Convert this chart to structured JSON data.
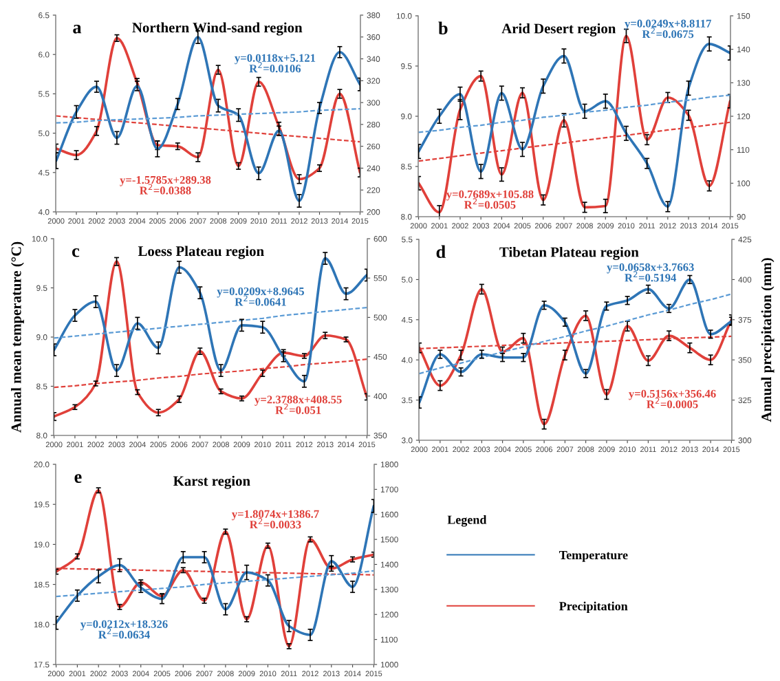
{
  "chart_data": [
    {
      "type": "line",
      "title": "Northern Wind-sand region",
      "annotations": [
        "a",
        "y=0.0118x+5.121\nR$^{2}$=0.0106",
        "y=-1.5785x+289.38\nR$^{2}$=0.0388"
      ],
      "categories": [
        "2000",
        "2001",
        "2002",
        "2003",
        "2004",
        "2005",
        "2006",
        "2007",
        "2008",
        "2009",
        "2010",
        "2011",
        "2012",
        "2013",
        "2014",
        "2015"
      ],
      "ylim": [
        4,
        6.5
      ],
      "yticks": [
        {
          "value": 4,
          "label": "4.0"
        },
        4.5,
        {
          "value": 5,
          "label": "5.0"
        },
        5.5,
        {
          "value": 6,
          "label": "6.0"
        },
        6.5
      ],
      "y2lim": [
        200,
        380
      ],
      "y2ticks": [
        200,
        220,
        240,
        260,
        280,
        300,
        320,
        340,
        360,
        380
      ],
      "series": [
        {
          "color": "#2e75b6",
          "values": [
            4.65,
            5.27,
            5.59,
            4.94,
            5.6,
            4.8,
            5.37,
            6.22,
            5.35,
            5.23,
            4.49,
            5.03,
            4.14,
            5.32,
            6.03,
            5.62
          ],
          "errors": [
            0.1,
            0.08,
            0.07,
            0.08,
            0.06,
            0.1,
            0.07,
            0.08,
            0.08,
            0.08,
            0.08,
            0.06,
            0.08,
            0.07,
            0.07,
            0.08
          ]
        },
        {
          "color": "#e0403a",
          "axis": "y2",
          "values": [
            258,
            252,
            274,
            359,
            318,
            261,
            260,
            250,
            330,
            242,
            319,
            278,
            230,
            240,
            308,
            236
          ],
          "errors": [
            4,
            4,
            4,
            3,
            4,
            4,
            3,
            4,
            4,
            3,
            4,
            4,
            4,
            3,
            4,
            4
          ]
        },
        {
          "type": "line",
          "line_style": "dashed",
          "color": "#5b9bd5",
          "values": [
            5.13,
            5.14,
            5.16,
            5.17,
            5.18,
            5.19,
            5.2,
            5.22,
            5.23,
            5.24,
            5.25,
            5.26,
            5.27,
            5.29,
            5.3,
            5.31
          ]
        },
        {
          "type": "line",
          "line_style": "dashed",
          "color": "#e0403a",
          "axis": "y2",
          "values": [
            287.8,
            286.2,
            284.6,
            283.1,
            281.5,
            279.9,
            278.3,
            276.8,
            275.2,
            273.6,
            272.0,
            270.4,
            268.9,
            267.3,
            265.7,
            264.1
          ]
        }
      ]
    },
    {
      "type": "line",
      "title": "Arid Desert region",
      "annotations": [
        "b",
        "y=0.0249x+8.8117\nR$^{2}$=0.0675",
        "y=0.7689x+105.88\nR$^{2}$=0.0505"
      ],
      "categories": [
        "2000",
        "2001",
        "2002",
        "2003",
        "2004",
        "2005",
        "2006",
        "2007",
        "2008",
        "2009",
        "2010",
        "2011",
        "2012",
        "2013",
        "2014",
        "2015"
      ],
      "ylim": [
        8,
        10
      ],
      "yticks": [
        {
          "value": 8,
          "label": "8.0"
        },
        8.5,
        {
          "value": 9,
          "label": "9.0"
        },
        9.5,
        {
          "value": 10,
          "label": "10.0"
        }
      ],
      "y2lim": [
        90,
        150
      ],
      "y2ticks": [
        90,
        100,
        110,
        120,
        130,
        140,
        150
      ],
      "series": [
        {
          "color": "#2e75b6",
          "values": [
            8.65,
            9.0,
            9.22,
            8.45,
            9.23,
            8.67,
            9.3,
            9.6,
            9.05,
            9.15,
            8.83,
            8.53,
            8.1,
            9.28,
            9.72,
            9.63
          ],
          "errors": [
            0.07,
            0.07,
            0.07,
            0.07,
            0.07,
            0.07,
            0.07,
            0.07,
            0.07,
            0.07,
            0.07,
            0.05,
            0.05,
            0.07,
            0.07,
            0.07
          ]
        },
        {
          "color": "#e0403a",
          "axis": "y2",
          "values": [
            100,
            91.3,
            122,
            132,
            102.6,
            127,
            95,
            118.8,
            92.8,
            93.2,
            144,
            113,
            125.6,
            120.3,
            99.2,
            124.5
          ],
          "errors": [
            2,
            2,
            3,
            1.5,
            2,
            1.5,
            1.5,
            2,
            1.5,
            2,
            2,
            1.5,
            1.5,
            1.5,
            1.5,
            2
          ]
        },
        {
          "type": "line",
          "line_style": "dashed",
          "color": "#5b9bd5",
          "values": [
            8.84,
            8.86,
            8.89,
            8.91,
            8.94,
            8.96,
            8.99,
            9.01,
            9.04,
            9.06,
            9.09,
            9.11,
            9.14,
            9.16,
            9.19,
            9.21
          ]
        },
        {
          "type": "line",
          "line_style": "dashed",
          "color": "#e0403a",
          "axis": "y2",
          "values": [
            106.6,
            107.4,
            108.2,
            109.0,
            109.7,
            110.5,
            111.3,
            112.0,
            112.8,
            113.6,
            114.3,
            115.1,
            115.9,
            116.6,
            117.4,
            118.2
          ]
        }
      ]
    },
    {
      "type": "line",
      "title": "Loess Plateau region",
      "ylabel": "Annual mean temperature (°C)",
      "annotations": [
        "c",
        "y=0.0209x+8.9645\nR$^{2}$=0.0641",
        "y=2.3788x+408.55\nR$^{2}$=0.051"
      ],
      "categories": [
        "2000",
        "2001",
        "2002",
        "2003",
        "2004",
        "2005",
        "2006",
        "2007",
        "2008",
        "2009",
        "2010",
        "2011",
        "2012",
        "2013",
        "2014",
        "2015"
      ],
      "ylim": [
        8,
        10
      ],
      "yticks": [
        {
          "value": 8,
          "label": "8.0"
        },
        8.5,
        {
          "value": 9,
          "label": "9.0"
        },
        9.5,
        {
          "value": 10,
          "label": "10.0"
        }
      ],
      "y2lim": [
        350,
        600
      ],
      "y2ticks": [
        350,
        400,
        450,
        500,
        550,
        600
      ],
      "series": [
        {
          "color": "#2e75b6",
          "values": [
            8.87,
            9.22,
            9.36,
            8.66,
            9.14,
            8.89,
            9.71,
            9.45,
            8.66,
            9.12,
            9.1,
            8.8,
            8.55,
            9.8,
            9.44,
            9.63
          ],
          "errors": [
            0.06,
            0.06,
            0.06,
            0.06,
            0.06,
            0.06,
            0.06,
            0.06,
            0.06,
            0.06,
            0.06,
            0.05,
            0.06,
            0.06,
            0.06,
            0.06
          ]
        },
        {
          "color": "#e0403a",
          "axis": "y2",
          "values": [
            374,
            386,
            416,
            571,
            405,
            379,
            396,
            457,
            406,
            397,
            429,
            455,
            451,
            477,
            472,
            399
          ],
          "errors": [
            5,
            3,
            3,
            5,
            3,
            4,
            4,
            4,
            3,
            3,
            4,
            4,
            3,
            4,
            3,
            4
          ]
        },
        {
          "type": "line",
          "line_style": "dashed",
          "color": "#5b9bd5",
          "values": [
            8.99,
            9.01,
            9.03,
            9.05,
            9.07,
            9.09,
            9.11,
            9.13,
            9.15,
            9.17,
            9.19,
            9.22,
            9.24,
            9.26,
            9.28,
            9.3
          ]
        },
        {
          "type": "line",
          "line_style": "dashed",
          "color": "#e0403a",
          "axis": "y2",
          "values": [
            411,
            413,
            416,
            418,
            420,
            423,
            425,
            428,
            430,
            432,
            435,
            437,
            440,
            442,
            444,
            447
          ]
        }
      ]
    },
    {
      "type": "line",
      "title": "Tibetan Plateau region",
      "y2label": "Annual precipitation (mm)",
      "annotations": [
        "d",
        "y=0.0658x+3.7663\nR$^{2}$=0.5194",
        "y=0.5156x+356.46\nR$^{2}$=0.0005"
      ],
      "categories": [
        "2000",
        "2001",
        "2002",
        "2003",
        "2004",
        "2005",
        "2006",
        "2007",
        "2008",
        "2009",
        "2010",
        "2011",
        "2012",
        "2013",
        "2014",
        "2015"
      ],
      "ylim": [
        3,
        5.5
      ],
      "yticks": [
        {
          "value": 3,
          "label": "3.0"
        },
        3.5,
        {
          "value": 4,
          "label": "4.0"
        },
        4.5,
        {
          "value": 5,
          "label": "5.0"
        },
        5.5
      ],
      "y2lim": [
        300,
        425
      ],
      "y2ticks": [
        300,
        325,
        350,
        375,
        400,
        425
      ],
      "series": [
        {
          "color": "#2e75b6",
          "values": [
            3.47,
            4.07,
            3.85,
            4.07,
            4.03,
            4.03,
            4.68,
            4.47,
            3.83,
            4.67,
            4.74,
            4.88,
            4.64,
            5.0,
            4.32,
            4.48
          ],
          "errors": [
            0.07,
            0.05,
            0.05,
            0.05,
            0.05,
            0.05,
            0.05,
            0.05,
            0.05,
            0.05,
            0.05,
            0.05,
            0.05,
            0.05,
            0.05,
            0.05
          ]
        },
        {
          "color": "#e0403a",
          "axis": "y2",
          "values": [
            357.5,
            334,
            353,
            394,
            355,
            363.5,
            310,
            353,
            377.5,
            328.5,
            371,
            349.5,
            365,
            357.5,
            350,
            375
          ],
          "errors": [
            3,
            3,
            3,
            3,
            3,
            3,
            3,
            3,
            3,
            3,
            3,
            3,
            3,
            3,
            3,
            3
          ]
        },
        {
          "type": "line",
          "line_style": "dashed",
          "color": "#5b9bd5",
          "values": [
            3.83,
            3.9,
            3.96,
            4.03,
            4.1,
            4.16,
            4.23,
            4.29,
            4.36,
            4.42,
            4.49,
            4.56,
            4.62,
            4.69,
            4.75,
            4.82
          ]
        },
        {
          "type": "line",
          "line_style": "dashed",
          "color": "#e0403a",
          "axis": "y2",
          "values": [
            357.0,
            357.5,
            358.0,
            358.5,
            359.0,
            359.6,
            360.1,
            360.6,
            361.1,
            361.6,
            362.1,
            362.6,
            363.2,
            363.7,
            364.2,
            364.7
          ]
        }
      ]
    },
    {
      "type": "line",
      "title": "Karst region",
      "annotations": [
        "e",
        "y=0.0212x+18.326\nR$^{2}$=0.0634",
        "y=1.8074x+1386.7\nR$^{2}$=0.0033"
      ],
      "categories": [
        "2000",
        "2001",
        "2002",
        "2003",
        "2004",
        "2005",
        "2006",
        "2007",
        "2008",
        "2009",
        "2010",
        "2011",
        "2012",
        "2013",
        "2014",
        "2015"
      ],
      "ylim": [
        17.5,
        20
      ],
      "yticks": [
        17.5,
        {
          "value": 18,
          "label": "18.0"
        },
        18.5,
        {
          "value": 19,
          "label": "19.0"
        },
        19.5,
        {
          "value": 20,
          "label": "20.0"
        }
      ],
      "y2lim": [
        1000,
        1800
      ],
      "y2ticks": [
        1000,
        1100,
        1200,
        1300,
        1400,
        1500,
        1600,
        1700,
        1800
      ],
      "legend": "right",
      "legend_title": "Legend",
      "series": [
        {
          "name": "Temperature",
          "color": "#2e75b6",
          "values": [
            18.02,
            18.36,
            18.6,
            18.74,
            18.46,
            18.32,
            18.84,
            18.84,
            18.19,
            18.65,
            18.55,
            17.98,
            17.87,
            18.79,
            18.47,
            19.48
          ],
          "errors": [
            0.08,
            0.07,
            0.08,
            0.08,
            0.06,
            0.06,
            0.07,
            0.07,
            0.07,
            0.09,
            0.07,
            0.07,
            0.07,
            0.07,
            0.07,
            0.08
          ]
        },
        {
          "name": "Precipitation",
          "color": "#e0403a",
          "axis": "y2",
          "values": [
            1371,
            1432,
            1696,
            1230,
            1328,
            1273,
            1377,
            1255,
            1531,
            1181,
            1475,
            1073,
            1500,
            1383,
            1420,
            1439
          ],
          "errors": [
            10,
            10,
            10,
            10,
            10,
            10,
            10,
            10,
            10,
            10,
            10,
            10,
            10,
            10,
            10,
            10
          ]
        },
        {
          "type": "line",
          "line_style": "dashed",
          "color": "#5b9bd5",
          "values": [
            18.35,
            18.37,
            18.39,
            18.41,
            18.43,
            18.45,
            18.47,
            18.5,
            18.52,
            18.54,
            18.56,
            18.58,
            18.6,
            18.62,
            18.64,
            18.67
          ]
        },
        {
          "type": "line",
          "line_style": "dashed",
          "color": "#e0403a",
          "axis": "y2",
          "values": [
            1384,
            1382,
            1381,
            1379,
            1377,
            1375,
            1374,
            1372,
            1370,
            1368,
            1367,
            1365,
            1363,
            1361,
            1360,
            1358
          ]
        }
      ]
    }
  ]
}
